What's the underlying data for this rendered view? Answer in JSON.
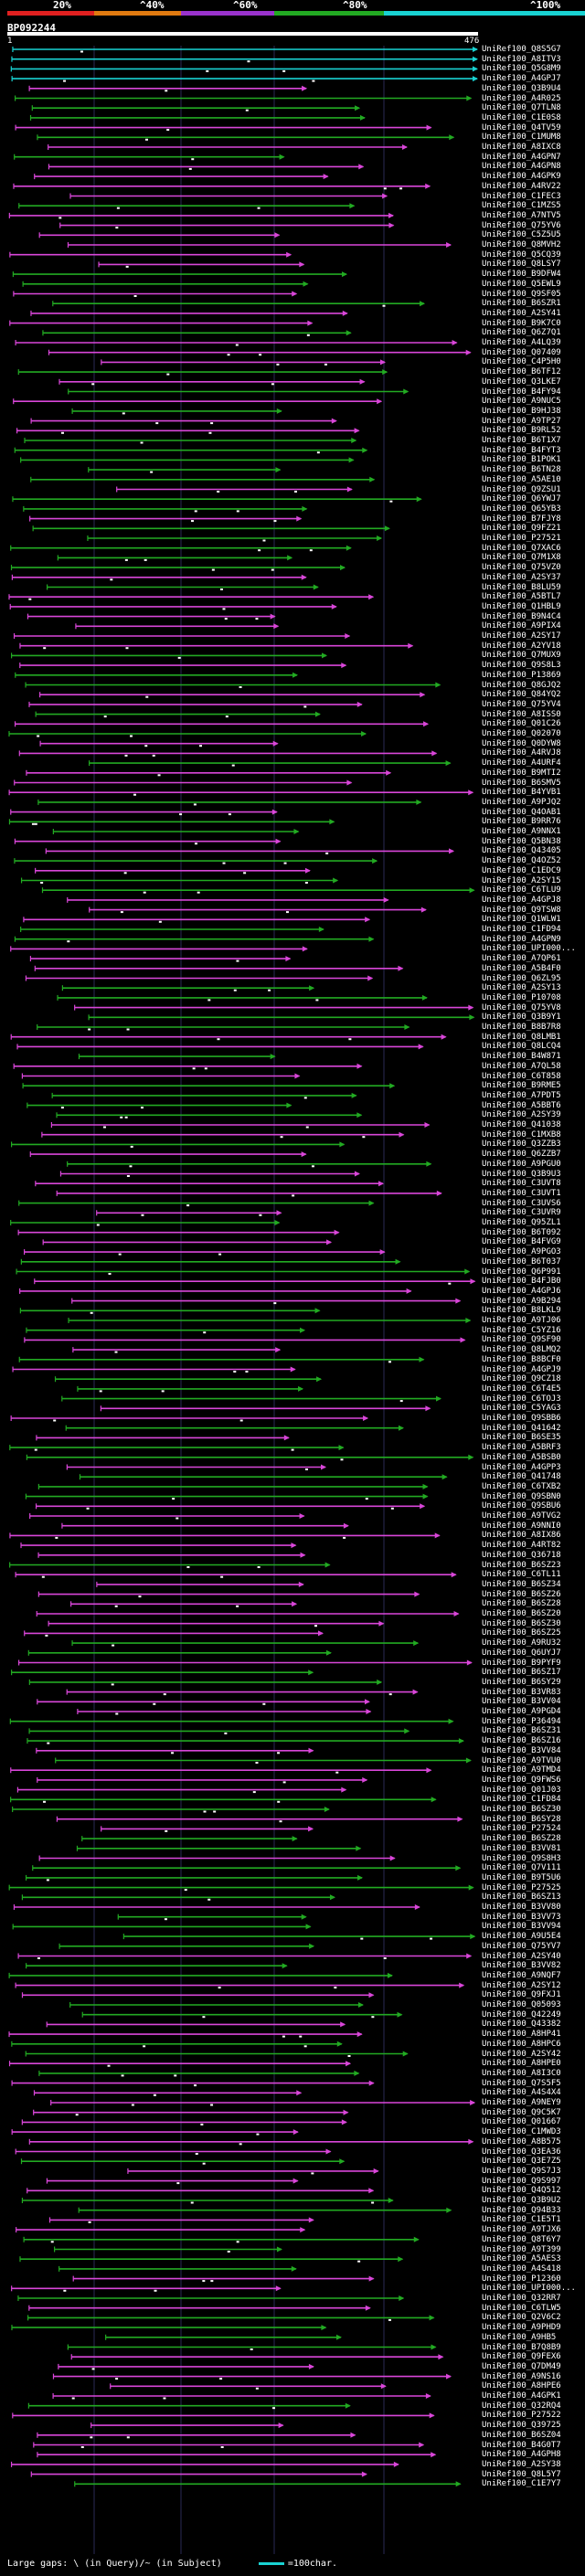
{
  "header": {
    "scale_labels": [
      "20%",
      "^40%",
      "^60%",
      "^80%",
      "^100%"
    ],
    "query_id": "BP092244",
    "start": "1",
    "end": "476"
  },
  "colors": {
    "red": "#e02020",
    "orange": "#e07a10",
    "purple": "#9932cc",
    "green": "#22aa22",
    "cyan": "#19d2d2",
    "magenta": "#d946d9",
    "white": "#ffffff"
  },
  "hits": [
    "UniRef100_Q8S5G7",
    "UniRef100_A8ITV3",
    "UniRef100_Q5G8M9",
    "UniRef100_A4GPJ7",
    "UniRef100_Q3B9U4",
    "UniRef100_A4R025",
    "UniRef100_Q7TLN8",
    "UniRef100_C1E0S8",
    "UniRef100_Q4TV59",
    "UniRef100_C1MUM8",
    "UniRef100_A8IXC8",
    "UniRef100_A4GPN7",
    "UniRef100_A4GPN8",
    "UniRef100_A4GPK9",
    "UniRef100_A4RV22",
    "UniRef100_C1FEC3",
    "UniRef100_C1MZS5",
    "UniRef100_A7NTV5",
    "UniRef100_Q75YV6",
    "UniRef100_C5Z5U5",
    "UniRef100_Q8MVH2",
    "UniRef100_Q5CQ39",
    "UniRef100_Q8LSY7",
    "UniRef100_B9DFW4",
    "UniRef100_Q5EWL9",
    "UniRef100_Q9SF05",
    "UniRef100_B6SZR1",
    "UniRef100_A2SY41",
    "UniRef100_B9K7C0",
    "UniRef100_Q6Z7Q1",
    "UniRef100_A4LQ39",
    "UniRef100_Q07409",
    "UniRef100_C4P5H0",
    "UniRef100_B6TF12",
    "UniRef100_Q3LKE7",
    "UniRef100_B4FY94",
    "UniRef100_A9NUC5",
    "UniRef100_B9HJ38",
    "UniRef100_A9TP27",
    "UniRef100_B9RL52",
    "UniRef100_B6T1X7",
    "UniRef100_B4FYT3",
    "UniRef100_B1POK1",
    "UniRef100_B6TN28",
    "UniRef100_A5AE10",
    "UniRef100_Q9ZSU1",
    "UniRef100_Q6YWJ7",
    "UniRef100_Q65YB3",
    "UniRef100_B7FJY8",
    "UniRef100_Q9FZ21",
    "UniRef100_P27521",
    "UniRef100_Q7XAC6",
    "UniRef100_Q7M1X8",
    "UniRef100_Q75VZ0",
    "UniRef100_A2SY37",
    "UniRef100_B8LU59",
    "UniRef100_A5BTL7",
    "UniRef100_Q1HBL9",
    "UniRef100_B9N4C4",
    "UniRef100_A9PIX4",
    "UniRef100_A2SY17",
    "UniRef100_A2YV18",
    "UniRef100_Q7MUX9",
    "UniRef100_Q9S8L3",
    "UniRef100_P13869",
    "UniRef100_Q8GJQ2",
    "UniRef100_Q84YQ2",
    "UniRef100_Q75YV4",
    "UniRef100_A8ISS0",
    "UniRef100_Q01C26",
    "UniRef100_Q02070",
    "UniRef100_Q0DYW8",
    "UniRef100_A4RVJ8",
    "UniRef100_A4URF4",
    "UniRef100_B9MTI2",
    "UniRef100_B6SMV5",
    "UniRef100_B4YVB1",
    "UniRef100_A9PJQ2",
    "UniRef100_Q4OAB1",
    "UniRef100_B9RR76",
    "UniRef100_A9NNX1",
    "UniRef100_Q5BN38",
    "UniRef100_Q43405",
    "UniRef100_Q4OZ52",
    "UniRef100_C1EDC9",
    "UniRef100_A2SY15",
    "UniRef100_C6TLU9",
    "UniRef100_A4GPJ8",
    "UniRef100_Q9TSW8",
    "UniRef100_Q1WLW1",
    "UniRef100_C1FD94",
    "UniRef100_A4GPN9",
    "UniRef100_UPI000...",
    "UniRef100_A7QP61",
    "UniRef100_A5B4F0",
    "UniRef100_Q6ZL95",
    "UniRef100_A2SY13",
    "UniRef100_P10708",
    "UniRef100_Q75YV8",
    "UniRef100_Q3B9Y1",
    "UniRef100_B8B7R8",
    "UniRef100_Q8LMB1",
    "UniRef100_Q8LCQ4",
    "UniRef100_B4W871",
    "UniRef100_A7QL58",
    "UniRef100_C6T858",
    "UniRef100_B9RME5",
    "UniRef100_A7PDT5",
    "UniRef100_A5BBT6",
    "UniRef100_A2SY39",
    "UniRef100_Q41038",
    "UniRef100_C1MXB8",
    "UniRef100_Q3ZZB3",
    "UniRef100_Q6ZZB7",
    "UniRef100_A9PGU0",
    "UniRef100_Q3B9U3",
    "UniRef100_C3UVT8",
    "UniRef100_C3UVT1",
    "UniRef100_C3UVS6",
    "UniRef100_C3UVR9",
    "UniRef100_Q95ZL1",
    "UniRef100_B6T092",
    "UniRef100_B4FVG9",
    "UniRef100_A9PGO3",
    "UniRef100_B6T037",
    "UniRef100_Q6P991",
    "UniRef100_B4FJB0",
    "UniRef100_A4GPJ6",
    "UniRef100_A9B294",
    "UniRef100_B8LKL9",
    "UniRef100_A9TJ06",
    "UniRef100_C5YZ16",
    "UniRef100_Q9SF90",
    "UniRef100_Q8LMQ2",
    "UniRef100_B8BCF0",
    "UniRef100_A4GPJ9",
    "UniRef100_Q9CZ18",
    "UniRef100_C6T4E5",
    "UniRef100_C6TOJ3",
    "UniRef100_C5YAG3",
    "UniRef100_Q9SBB6",
    "UniRef100_Q41642",
    "UniRef100_B6SE35",
    "UniRef100_A5BRF3",
    "UniRef100_A5BSB0",
    "UniRef100_A4GPP3",
    "UniRef100_Q41748",
    "UniRef100_C6TXB2",
    "UniRef100_Q9SBN0",
    "UniRef100_Q9SBU6",
    "UniRef100_A9TVG2",
    "UniRef100_A9NNI0",
    "UniRef100_A8IX86",
    "UniRef100_A4RT82",
    "UniRef100_Q36718",
    "UniRef100_B6SZ23",
    "UniRef100_C6TL11",
    "UniRef100_B6SZ34",
    "UniRef100_B6SZ26",
    "UniRef100_B6SZ28",
    "UniRef100_B6SZ20",
    "UniRef100_B6SZ30",
    "UniRef100_B6SZ25",
    "UniRef100_A9RU32",
    "UniRef100_Q6UYJ7",
    "UniRef100_B9PYF9",
    "UniRef100_B6SZ17",
    "UniRef100_B6SY29",
    "UniRef100_B3VR83",
    "UniRef100_B3VV04",
    "UniRef100_A9PGD4",
    "UniRef100_P36494",
    "UniRef100_B6SZ31",
    "UniRef100_B6SZ16",
    "UniRef100_B3VV84",
    "UniRef100_A9TVU0",
    "UniRef100_A9TMD4",
    "UniRef100_Q9FWS6",
    "UniRef100_Q01J03",
    "UniRef100_C1FD84",
    "UniRef100_B6SZ30",
    "UniRef100_B6SY28",
    "UniRef100_P27524",
    "UniRef100_B6SZ28",
    "UniRef100_B3VV81",
    "UniRef100_Q9S8H3",
    "UniRef100_Q7V111",
    "UniRef100_B9T5U6",
    "UniRef100_P27525",
    "UniRef100_B6SZ13",
    "UniRef100_B3VV80",
    "UniRef100_B3VV73",
    "UniRef100_B3VV94",
    "UniRef100_A9U5E4",
    "UniRef100_Q75YV7",
    "UniRef100_A2SY40",
    "UniRef100_B3VV82",
    "UniRef100_A9NQF7",
    "UniRef100_A2SY12",
    "UniRef100_Q9FXJ1",
    "UniRef100_Q05093",
    "UniRef100_Q42249",
    "UniRef100_Q43382",
    "UniRef100_A8HP41",
    "UniRef100_A8HPC6",
    "UniRef100_A2SY42",
    "UniRef100_A8HPE0",
    "UniRef100_A8I3C0",
    "UniRef100_Q7S5F5",
    "UniRef100_A4S4X4",
    "UniRef100_A9NEY9",
    "UniRef100_Q9C5K7",
    "UniRef100_Q01667",
    "UniRef100_C1MWD3",
    "UniRef100_A8B575",
    "UniRef100_Q3EA36",
    "UniRef100_Q3E7Z5",
    "UniRef100_Q9S7J3",
    "UniRef100_Q9S997",
    "UniRef100_Q4Q512",
    "UniRef100_Q3B9U2",
    "UniRef100_Q94B33",
    "UniRef100_C1E5T1",
    "UniRef100_A9TJX6",
    "UniRef100_Q8T6Y7",
    "UniRef100_A9T399",
    "UniRef100_A5AES3",
    "UniRef100_A4S418",
    "UniRef100_P12360",
    "UniRef100_UPI000...",
    "UniRef100_Q32RR7",
    "UniRef100_C6TLW5",
    "UniRef100_Q2V6C2",
    "UniRef100_A9PHD9",
    "UniRef100_A9HB5",
    "UniRef100_B7Q8B9",
    "UniRef100_Q9FEX6",
    "UniRef100_Q7DM49",
    "UniRef100_A9NS16",
    "UniRef100_A8HPE6",
    "UniRef100_A4GPK1",
    "UniRef100_Q32RQ4",
    "UniRef100_P27522",
    "UniRef100_Q39725",
    "UniRef100_B6SZ04",
    "UniRef100_B4G0T7",
    "UniRef100_A4GPH8",
    "UniRef100_A2SY38",
    "UniRef100_Q8L5Y7",
    "UniRef100_C1E7Y7"
  ],
  "footer": {
    "text": "Large gaps: \\ (in Query)/~ (in Subject)",
    "legend": "=100char."
  }
}
